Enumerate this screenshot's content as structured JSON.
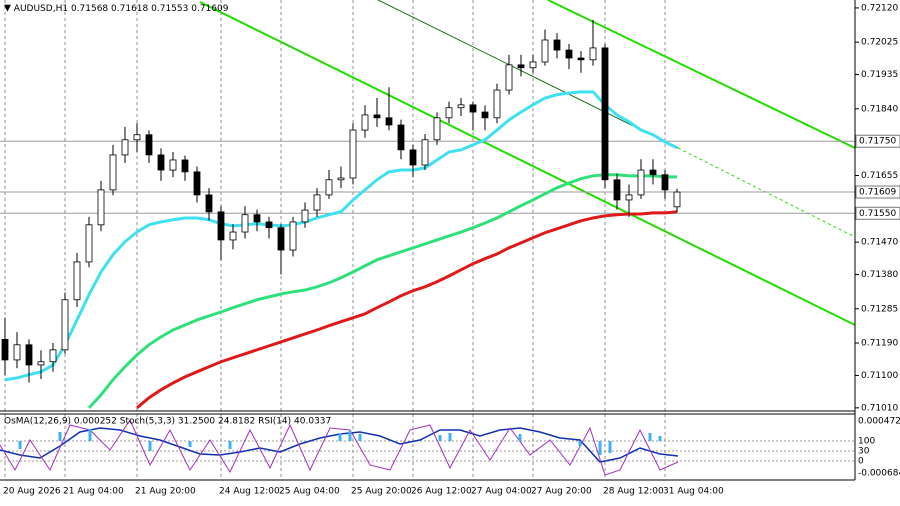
{
  "chart_data": {
    "type": "candlestick",
    "symbol": "AUDUSD,H1",
    "categories": [
      "20 Aug 2026",
      null,
      null,
      null,
      null,
      "21 Aug 04:00",
      null,
      null,
      null,
      null,
      null,
      "21 Aug 20:00",
      null,
      null,
      null,
      null,
      null,
      null,
      "24 Aug 12:00",
      null,
      null,
      null,
      null,
      "25 Aug 04:00",
      null,
      null,
      null,
      null,
      null,
      "25 Aug 20:00",
      null,
      null,
      null,
      null,
      "26 Aug 12:00",
      null,
      null,
      null,
      null,
      "27 Aug 04:00",
      null,
      null,
      null,
      null,
      "27 Aug 20:00",
      null,
      null,
      null,
      null,
      null,
      "28 Aug 12:00",
      null,
      null,
      null,
      null,
      "31 Aug 04:00",
      null
    ],
    "candles": [
      [
        0.712,
        0.7126,
        0.711,
        0.71143
      ],
      [
        0.71143,
        0.7122,
        0.7112,
        0.71185
      ],
      [
        0.71185,
        0.712,
        0.7108,
        0.71129
      ],
      [
        0.71129,
        0.7117,
        0.7109,
        0.71138
      ],
      [
        0.71138,
        0.7119,
        0.7111,
        0.71171
      ],
      [
        0.71171,
        0.7133,
        0.7116,
        0.7131
      ],
      [
        0.7131,
        0.7144,
        0.7129,
        0.71415
      ],
      [
        0.71415,
        0.7154,
        0.714,
        0.71518
      ],
      [
        0.71518,
        0.7164,
        0.715,
        0.71615
      ],
      [
        0.71615,
        0.7174,
        0.716,
        0.71712
      ],
      [
        0.71712,
        0.7179,
        0.7169,
        0.71754
      ],
      [
        0.71754,
        0.718,
        0.7172,
        0.71768
      ],
      [
        0.71768,
        0.7178,
        0.7169,
        0.71712
      ],
      [
        0.71712,
        0.7173,
        0.7164,
        0.7167
      ],
      [
        0.7167,
        0.7172,
        0.7165,
        0.71698
      ],
      [
        0.71698,
        0.7171,
        0.7164,
        0.71665
      ],
      [
        0.71665,
        0.7168,
        0.7158,
        0.71601
      ],
      [
        0.71601,
        0.7162,
        0.7153,
        0.71554
      ],
      [
        0.71554,
        0.7157,
        0.7142,
        0.71476
      ],
      [
        0.71476,
        0.7152,
        0.7145,
        0.71498
      ],
      [
        0.71498,
        0.7157,
        0.7148,
        0.71546
      ],
      [
        0.71546,
        0.7156,
        0.715,
        0.71526
      ],
      [
        0.71526,
        0.7154,
        0.7148,
        0.7151
      ],
      [
        0.7151,
        0.7152,
        0.7138,
        0.71448
      ],
      [
        0.71448,
        0.7154,
        0.7143,
        0.71526
      ],
      [
        0.71526,
        0.7158,
        0.7151,
        0.71559
      ],
      [
        0.71559,
        0.7162,
        0.7154,
        0.71601
      ],
      [
        0.71601,
        0.7167,
        0.7159,
        0.71643
      ],
      [
        0.71643,
        0.7168,
        0.7162,
        0.71648
      ],
      [
        0.71648,
        0.718,
        0.7163,
        0.71781
      ],
      [
        0.71781,
        0.7185,
        0.7176,
        0.71823
      ],
      [
        0.71823,
        0.7187,
        0.7179,
        0.71815
      ],
      [
        0.71815,
        0.719,
        0.7178,
        0.71795
      ],
      [
        0.71795,
        0.7181,
        0.717,
        0.71726
      ],
      [
        0.71726,
        0.7174,
        0.7165,
        0.71684
      ],
      [
        0.71684,
        0.7177,
        0.7167,
        0.71754
      ],
      [
        0.71754,
        0.7183,
        0.7174,
        0.71815
      ],
      [
        0.71815,
        0.7186,
        0.718,
        0.71843
      ],
      [
        0.71843,
        0.7187,
        0.7182,
        0.71851
      ],
      [
        0.71851,
        0.7186,
        0.7178,
        0.71831
      ],
      [
        0.71831,
        0.7185,
        0.7178,
        0.71815
      ],
      [
        0.71815,
        0.7191,
        0.718,
        0.71892
      ],
      [
        0.71892,
        0.7199,
        0.7188,
        0.71962
      ],
      [
        0.71962,
        0.7199,
        0.7193,
        0.71954
      ],
      [
        0.71954,
        0.7199,
        0.7194,
        0.7197
      ],
      [
        0.7197,
        0.7206,
        0.7196,
        0.72031
      ],
      [
        0.72031,
        0.7205,
        0.7198,
        0.72003
      ],
      [
        0.72003,
        0.7202,
        0.7195,
        0.71981
      ],
      [
        0.71981,
        0.72,
        0.7194,
        0.71976
      ],
      [
        0.71976,
        0.72087,
        0.7196,
        0.72009
      ],
      [
        0.72009,
        0.7202,
        0.7162,
        0.71643
      ],
      [
        0.71643,
        0.7166,
        0.7156,
        0.71587
      ],
      [
        0.71587,
        0.7163,
        0.7154,
        0.71601
      ],
      [
        0.71601,
        0.717,
        0.7159,
        0.7167
      ],
      [
        0.7167,
        0.717,
        0.7163,
        0.71657
      ],
      [
        0.71657,
        0.7167,
        0.7159,
        0.71615
      ],
      [
        0.71568,
        0.71618,
        0.71553,
        0.71609
      ]
    ],
    "series": [
      {
        "color": "#3fe0f0",
        "values": [
          0.71088,
          0.71093,
          0.71102,
          0.7111,
          0.71129,
          0.71185,
          0.71254,
          0.71324,
          0.71387,
          0.71435,
          0.71471,
          0.71498,
          0.71518,
          0.71526,
          0.71532,
          0.71537,
          0.71537,
          0.71532,
          0.71521,
          0.71515,
          0.71518,
          0.71521,
          0.71518,
          0.71515,
          0.71518,
          0.71526,
          0.71537,
          0.71546,
          0.71554,
          0.71587,
          0.71615,
          0.71643,
          0.71665,
          0.7167,
          0.7167,
          0.71676,
          0.71698,
          0.7172,
          0.71726,
          0.7174,
          0.71754,
          0.71781,
          0.71809,
          0.71831,
          0.71851,
          0.7187,
          0.71879,
          0.71884,
          0.71887,
          0.71887,
          0.71851,
          0.71823,
          0.71804,
          0.71781,
          0.71768,
          0.71748,
          0.71732
        ]
      },
      {
        "color": "#2ee07a",
        "values": [
          null,
          null,
          null,
          null,
          null,
          null,
          null,
          0.7101,
          0.71046,
          0.71088,
          0.71124,
          0.71157,
          0.71185,
          0.71207,
          0.71226,
          0.7124,
          0.71254,
          0.71265,
          0.71276,
          0.71288,
          0.71299,
          0.7131,
          0.71318,
          0.71326,
          0.71332,
          0.71337,
          0.71346,
          0.71357,
          0.71371,
          0.71387,
          0.71404,
          0.71421,
          0.71432,
          0.71443,
          0.71454,
          0.71465,
          0.71476,
          0.71487,
          0.71498,
          0.7151,
          0.71523,
          0.71537,
          0.71554,
          0.71571,
          0.71587,
          0.71604,
          0.71621,
          0.71634,
          0.71646,
          0.71654,
          0.71657,
          0.71657,
          0.71654,
          0.71654,
          0.71654,
          0.71651,
          0.71651
        ]
      },
      {
        "color": "#e01818",
        "values": [
          null,
          null,
          null,
          null,
          null,
          null,
          null,
          null,
          null,
          null,
          null,
          0.7101,
          0.71038,
          0.7106,
          0.71079,
          0.71096,
          0.7111,
          0.71124,
          0.71138,
          0.71149,
          0.7116,
          0.71171,
          0.71182,
          0.71193,
          0.71204,
          0.71215,
          0.71226,
          0.71238,
          0.71249,
          0.7126,
          0.71271,
          0.71288,
          0.71304,
          0.71321,
          0.71335,
          0.71346,
          0.7136,
          0.71376,
          0.71393,
          0.7141,
          0.71424,
          0.71437,
          0.71454,
          0.71468,
          0.71482,
          0.71496,
          0.71507,
          0.71518,
          0.71529,
          0.71537,
          0.71543,
          0.71546,
          0.71548,
          0.71548,
          0.71551,
          0.71551,
          0.71554
        ]
      }
    ],
    "levels": [
      {
        "value": 0.7175,
        "label": "0.71750"
      },
      0.71609,
      {
        "value": 0.7155,
        "label": "0.71550"
      }
    ],
    "ylim": [
      0.71004,
      0.72142
    ],
    "yticks": [
      {
        "value": 0.7212,
        "label": "0.72120"
      },
      0.72025,
      0.71935,
      {
        "value": 0.7184,
        "label": "0.71840"
      },
      0.71655,
      {
        "value": 0.7147,
        "label": "0.71470"
      },
      {
        "value": 0.7138,
        "label": "0.71380"
      },
      0.71285,
      {
        "value": 0.7119,
        "label": "0.71190"
      },
      {
        "value": 0.711,
        "label": "0.71100"
      },
      {
        "value": 0.7101,
        "label": "0.71010"
      }
    ],
    "grid": true,
    "indicators": {
      "text": "OsMA(12,26,9) 0.000252  Stoch(5,3,3) 31.2500 24.8182  RSI(14) 40.0337",
      "axis_labels": [
        "0.000472",
        "100",
        "30",
        "0",
        "-0.000684"
      ]
    }
  }
}
